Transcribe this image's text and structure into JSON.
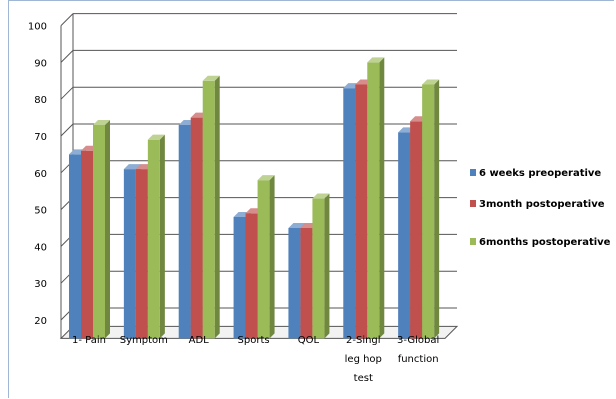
{
  "chart_data": {
    "type": "bar",
    "categories": [
      "1- Pain",
      "Symptom",
      "ADL",
      "Sports",
      "QOL",
      "2-Singl leg hop test",
      "3-Global function"
    ],
    "category_lines": [
      [
        "1- Pain"
      ],
      [
        "Symptom"
      ],
      [
        "ADL"
      ],
      [
        "Sports"
      ],
      [
        "QOL"
      ],
      [
        "2-Singl",
        "leg hop",
        "test"
      ],
      [
        "3-Global",
        "function"
      ]
    ],
    "series": [
      {
        "name": "6 weeks preoperative",
        "values": [
          65,
          61,
          73,
          48,
          45,
          83,
          71
        ],
        "color": "#4f81bd"
      },
      {
        "name": "3month postoperative",
        "values": [
          66,
          61,
          75,
          49,
          45,
          84,
          74
        ],
        "color": "#c0504d"
      },
      {
        "name": "6months postoperative",
        "values": [
          73,
          69,
          85,
          58,
          53,
          90,
          84
        ],
        "color": "#9bbb59"
      }
    ],
    "y_ticks": [
      100,
      90,
      80,
      70,
      60,
      50,
      40,
      30,
      20
    ],
    "ylim": [
      15,
      100
    ],
    "grid": true,
    "legend_position": "right",
    "title": "",
    "xlabel": "",
    "ylabel": ""
  }
}
